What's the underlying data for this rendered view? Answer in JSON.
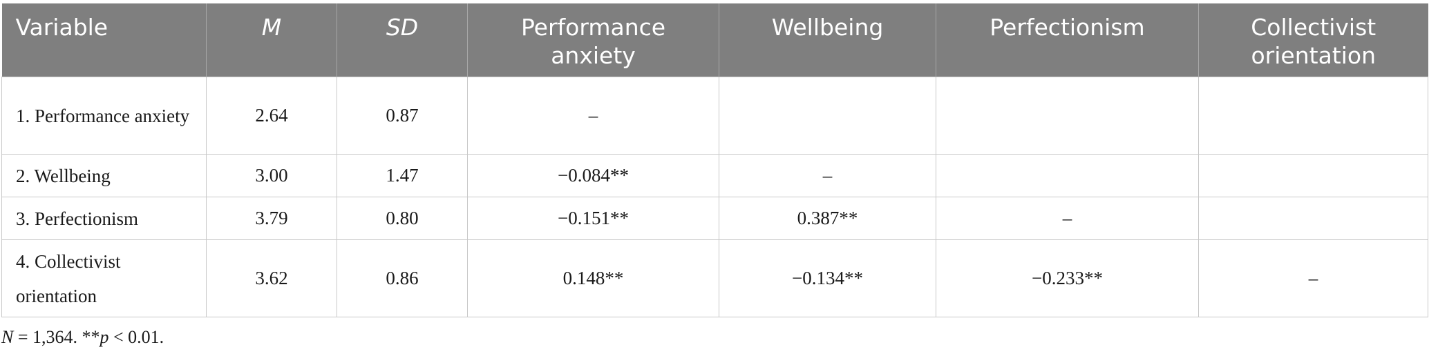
{
  "table": {
    "headers": [
      "Variable",
      "M",
      "SD",
      "Performance anxiety",
      "Wellbeing",
      "Perfectionism",
      "Collectivist orientation"
    ],
    "rows": [
      [
        "1. Performance anxiety",
        "2.64",
        "0.87",
        "–",
        "",
        "",
        ""
      ],
      [
        "2. Wellbeing",
        "3.00",
        "1.47",
        "−0.084**",
        "–",
        "",
        ""
      ],
      [
        "3. Perfectionism",
        "3.79",
        "0.80",
        "−0.151**",
        "0.387**",
        "–",
        ""
      ],
      [
        "4. Collectivist orientation",
        "3.62",
        "0.86",
        "0.148**",
        "−0.134**",
        "−0.233**",
        "–"
      ]
    ]
  },
  "note": {
    "n_label": "N",
    "n_text": " = 1,364. **",
    "p_label": "p",
    "p_text": " < 0.01."
  }
}
